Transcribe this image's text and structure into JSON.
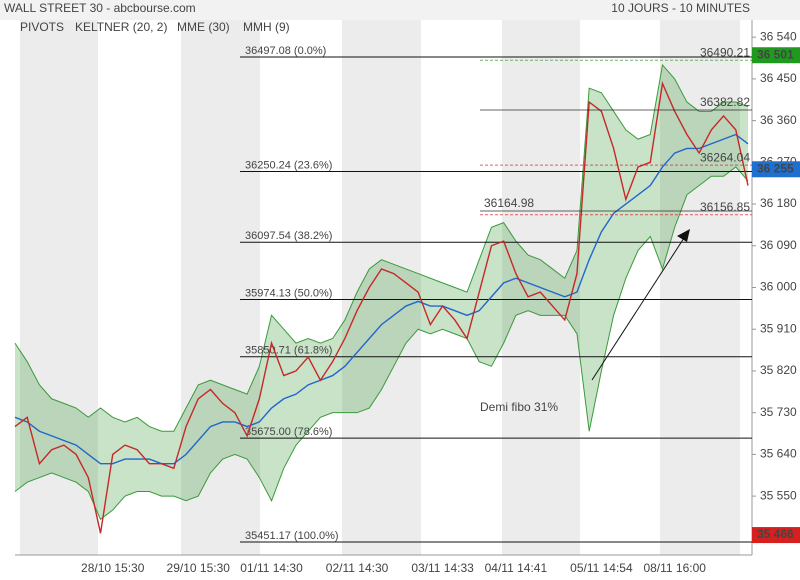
{
  "chart_data": {
    "type": "line",
    "title": "WALL STREET 30 - abcbourse.com",
    "subtitle": "10 JOURS - 10 MINUTES",
    "pivots_label": "PIVOTS",
    "ylim": [
      35423,
      36577
    ],
    "yticks": [
      {
        "value": 36540,
        "label": "36 540"
      },
      {
        "value": 36450,
        "label": "36 450"
      },
      {
        "value": 36360,
        "label": "36 360"
      },
      {
        "value": 36270,
        "label": "36 270"
      },
      {
        "value": 36180,
        "label": "36 180"
      },
      {
        "value": 36090,
        "label": "36 090"
      },
      {
        "value": 36000,
        "label": "36 000"
      },
      {
        "value": 35910,
        "label": "35 910"
      },
      {
        "value": 35820,
        "label": "35 820"
      },
      {
        "value": 35730,
        "label": "35 730"
      },
      {
        "value": 35640,
        "label": "35 640"
      },
      {
        "value": 35550,
        "label": "35 550"
      }
    ],
    "categories": [
      null,
      null,
      null,
      null,
      null,
      null,
      null,
      null,
      "28/10 15:30",
      null,
      null,
      null,
      null,
      null,
      null,
      "29/10 15:30",
      null,
      null,
      null,
      null,
      null,
      "01/11 14:30",
      null,
      null,
      null,
      null,
      null,
      null,
      "02/11 14:30",
      null,
      null,
      null,
      null,
      null,
      null,
      "03/11 14:33",
      null,
      null,
      null,
      null,
      null,
      "04/11 14:41",
      null,
      null,
      null,
      null,
      null,
      null,
      "05/11 14:54",
      null,
      null,
      null,
      null,
      null,
      "08/11 16:00",
      null,
      null,
      null,
      null,
      null,
      null
    ],
    "keltner": {
      "name": "KELTNER (20, 2)",
      "color": "#3a9a3a",
      "upper": [
        35880,
        35840,
        35790,
        35760,
        35750,
        35740,
        35720,
        35740,
        35720,
        35710,
        35720,
        35700,
        35690,
        35690,
        35740,
        35790,
        35800,
        35790,
        35780,
        35770,
        35830,
        35940,
        35910,
        35880,
        35890,
        35880,
        35890,
        35930,
        35990,
        36040,
        36060,
        36050,
        36040,
        36030,
        36020,
        36010,
        36000,
        35990,
        36060,
        36130,
        36140,
        36100,
        36070,
        36060,
        36040,
        36020,
        36080,
        36430,
        36420,
        36380,
        36340,
        36320,
        36330,
        36480,
        36450,
        36400,
        36380,
        36380,
        36400,
        36400,
        36390
      ],
      "lower": [
        35560,
        35580,
        35590,
        35600,
        35590,
        35580,
        35560,
        35500,
        35520,
        35550,
        35560,
        35560,
        35550,
        35550,
        35540,
        35550,
        35600,
        35630,
        35640,
        35630,
        35590,
        35540,
        35610,
        35660,
        35690,
        35720,
        35730,
        35730,
        35730,
        35740,
        35780,
        35830,
        35880,
        35910,
        35900,
        35910,
        35900,
        35890,
        35840,
        35830,
        35880,
        35940,
        35950,
        35940,
        35940,
        35940,
        35900,
        35690,
        35820,
        35940,
        36020,
        36080,
        36110,
        36040,
        36130,
        36200,
        36220,
        36240,
        36240,
        36260,
        36230
      ]
    },
    "series": [
      {
        "name": "MME (30)",
        "color": "#2266cc",
        "values": [
          35720,
          35710,
          35690,
          35680,
          35670,
          35660,
          35640,
          35620,
          35620,
          35630,
          35630,
          35630,
          35620,
          35620,
          35640,
          35670,
          35700,
          35710,
          35710,
          35700,
          35710,
          35740,
          35760,
          35770,
          35790,
          35800,
          35810,
          35830,
          35860,
          35890,
          35920,
          35940,
          35960,
          35970,
          35960,
          35960,
          35950,
          35940,
          35950,
          35980,
          36010,
          36020,
          36010,
          36000,
          35990,
          35980,
          35990,
          36060,
          36120,
          36160,
          36180,
          36200,
          36220,
          36260,
          36290,
          36300,
          36300,
          36310,
          36320,
          36330,
          36310
        ]
      },
      {
        "name": "MMH (9)",
        "color": "#c62828",
        "values": [
          35700,
          35720,
          35620,
          35650,
          35660,
          35640,
          35590,
          35470,
          35640,
          35660,
          35650,
          35620,
          35620,
          35610,
          35700,
          35760,
          35780,
          35750,
          35730,
          35680,
          35760,
          35880,
          35810,
          35820,
          35850,
          35800,
          35840,
          35890,
          35950,
          36000,
          36040,
          36030,
          36010,
          35990,
          35920,
          35960,
          35930,
          35890,
          35990,
          36090,
          36100,
          36030,
          35980,
          35990,
          35960,
          35930,
          36030,
          36400,
          36380,
          36300,
          36190,
          36260,
          36270,
          36440,
          36380,
          36330,
          36290,
          36340,
          36370,
          36340,
          36220
        ]
      }
    ],
    "fibo": [
      {
        "value": 36497.08,
        "label": "36497.08  (0.0%)"
      },
      {
        "value": 36250.24,
        "label": "36250.24  (23.6%)"
      },
      {
        "value": 36097.54,
        "label": "36097.54  (38.2%)"
      },
      {
        "value": 35974.13,
        "label": "35974.13  (50.0%)"
      },
      {
        "value": 35850.71,
        "label": "35850.71  (61.8%)"
      },
      {
        "value": 35675.0,
        "label": "35675.00  (78.6%)"
      },
      {
        "value": 35451.17,
        "label": "35451.17  (100.0%)"
      }
    ],
    "levels": [
      {
        "value": 36490.21,
        "color": "#2a9a2a"
      },
      {
        "value": 36382.82,
        "color": "#222222"
      },
      {
        "value": 36264.04,
        "color": "#d62020"
      },
      {
        "value": 36164.98,
        "color": "#222222"
      },
      {
        "value": 36156.85,
        "color": "#d62020"
      }
    ],
    "price_boxes": [
      {
        "value": 36501,
        "label": "36 501",
        "color": "#1f9a1f"
      },
      {
        "value": 36255,
        "label": "36 255",
        "color": "#1f6fd0"
      },
      {
        "value": 35466,
        "label": "35 466",
        "color": "#d62020"
      }
    ],
    "annotation": "Demi fibo 31%"
  }
}
